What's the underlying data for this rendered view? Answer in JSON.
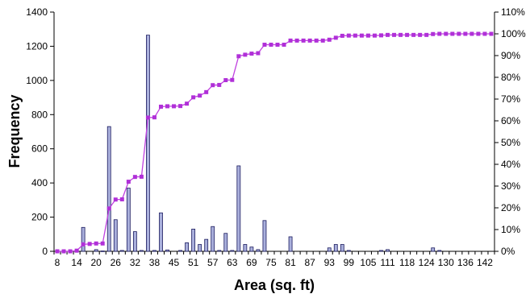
{
  "chart_data": {
    "type": "bar",
    "title": "",
    "xlabel": "Area (sq. ft)",
    "ylabel": "Frequency",
    "ylim": [
      0,
      1400
    ],
    "y2lim": [
      0,
      110
    ],
    "y_ticks": [
      "0",
      "200",
      "400",
      "600",
      "800",
      "1000",
      "1200",
      "1400"
    ],
    "y2_ticks": [
      "0%",
      "10%",
      "20%",
      "30%",
      "40%",
      "50%",
      "60%",
      "70%",
      "80%",
      "90%",
      "100%",
      "110%"
    ],
    "grid": false,
    "legend": "none",
    "x": [
      8,
      10,
      12,
      14,
      16,
      18,
      20,
      22,
      24,
      26,
      28,
      30,
      32,
      34,
      36,
      38,
      40,
      42,
      44,
      46,
      48,
      50,
      52,
      54,
      56,
      58,
      60,
      62,
      64,
      66,
      68,
      70,
      72,
      74,
      76,
      78,
      80,
      82,
      84,
      86,
      88,
      90,
      92,
      94,
      96,
      98,
      100,
      102,
      104,
      106,
      108,
      110,
      112,
      114,
      116,
      118,
      120,
      122,
      124,
      126,
      128,
      130,
      132,
      134,
      136,
      138,
      140,
      142
    ],
    "x_tick_labels": [
      "8",
      "14",
      "20",
      "26",
      "32",
      "38",
      "45",
      "51",
      "57",
      "63",
      "69",
      "75",
      "81",
      "87",
      "93",
      "99",
      "105",
      "111",
      "118",
      "124",
      "130",
      "136",
      "142"
    ],
    "series": [
      {
        "kind": "bar",
        "axis": "left",
        "values": [
          0,
          0,
          0,
          0,
          140,
          0,
          10,
          2,
          730,
          185,
          5,
          370,
          115,
          5,
          1265,
          5,
          225,
          8,
          0,
          5,
          50,
          130,
          40,
          70,
          145,
          5,
          105,
          5,
          500,
          40,
          25,
          10,
          180,
          0,
          0,
          0,
          85,
          0,
          0,
          0,
          0,
          0,
          20,
          40,
          40,
          5,
          0,
          0,
          0,
          0,
          5,
          10,
          0,
          0,
          0,
          0,
          0,
          0,
          20,
          5,
          0,
          0,
          0,
          0,
          0,
          0,
          0,
          0
        ]
      },
      {
        "kind": "line",
        "axis": "right",
        "values": [
          0,
          0,
          0,
          0.3,
          3.2,
          3.4,
          3.6,
          3.6,
          19.7,
          23.8,
          23.9,
          32,
          34.2,
          34.3,
          61.5,
          61.6,
          66.5,
          66.7,
          66.7,
          66.8,
          67.9,
          70.8,
          71.6,
          73.2,
          76.4,
          76.5,
          78.7,
          78.8,
          89.7,
          90.4,
          90.9,
          91.1,
          95,
          95,
          95,
          95,
          96.9,
          96.9,
          96.9,
          96.9,
          96.9,
          96.9,
          97.3,
          98.2,
          99.1,
          99.2,
          99.2,
          99.2,
          99.2,
          99.2,
          99.3,
          99.5,
          99.5,
          99.5,
          99.5,
          99.5,
          99.5,
          99.5,
          99.9,
          100,
          100,
          100,
          100,
          100,
          100,
          100,
          100,
          100
        ]
      }
    ]
  },
  "colors": {
    "bar_fill": "#aab0dc",
    "bar_stroke": "#1a1a5e",
    "line": "#c040e0",
    "marker": "#b030d8"
  }
}
